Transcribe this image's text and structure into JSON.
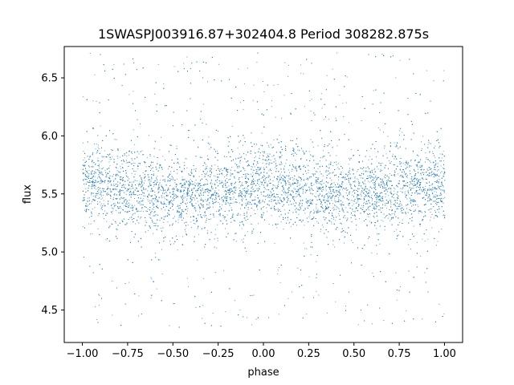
{
  "chart_data": {
    "type": "scatter",
    "title": "1SWASPJ003916.87+302404.8 Period 308282.875s",
    "xlabel": "phase",
    "ylabel": "flux",
    "xlim": [
      -1.1,
      1.1
    ],
    "ylim": [
      4.22,
      6.77
    ],
    "xticks": [
      -1.0,
      -0.75,
      -0.5,
      -0.25,
      0.0,
      0.25,
      0.5,
      0.75,
      1.0
    ],
    "xtick_labels": [
      "−1.00",
      "−0.75",
      "−0.50",
      "−0.25",
      "0.00",
      "0.25",
      "0.50",
      "0.75",
      "1.00"
    ],
    "yticks": [
      4.5,
      5.0,
      5.5,
      6.0,
      6.5
    ],
    "ytick_labels": [
      "4.5",
      "5.0",
      "5.5",
      "6.0",
      "6.5"
    ],
    "grid": false,
    "marker_color": "#1f77b4",
    "series": [
      {
        "x_range": [
          -1.0,
          1.0
        ],
        "y_range": [
          4.35,
          6.72
        ],
        "core_band": [
          5.2,
          5.95
        ],
        "mean_flux_by_phase": {
          "phase": [
            -1.0,
            -0.75,
            -0.5,
            -0.25,
            0.0,
            0.25,
            0.5,
            0.75,
            1.0
          ],
          "flux": [
            5.6,
            5.55,
            5.48,
            5.52,
            5.58,
            5.55,
            5.48,
            5.55,
            5.6
          ]
        }
      }
    ]
  }
}
